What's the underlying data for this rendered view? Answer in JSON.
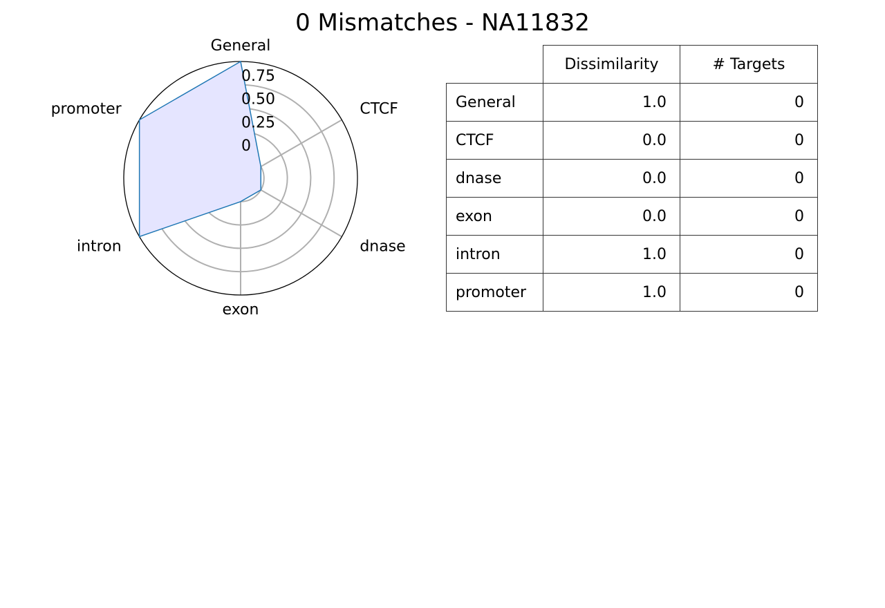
{
  "title": "0 Mismatches - NA11832",
  "chart_data": {
    "type": "radar",
    "title": "0 Mismatches - NA11832",
    "categories": [
      "General",
      "CTCF",
      "dnase",
      "exon",
      "intron",
      "promoter"
    ],
    "values": [
      1.0,
      0.0,
      0.0,
      0.0,
      1.0,
      1.0
    ],
    "rlim": [
      -0.25,
      1.0
    ],
    "radial_ticks": [
      0,
      0.25,
      0.5,
      0.75
    ],
    "radial_tick_labels": [
      "0",
      "0.25",
      "0.50",
      "0.75"
    ],
    "grid": true,
    "colors": {
      "line": "#1f77b4",
      "fill": "#e5e5ff",
      "grid": "#b0b0b0",
      "frame": "#000000"
    }
  },
  "table": {
    "headers": [
      "",
      "Dissimilarity",
      "# Targets"
    ],
    "rows": [
      {
        "label": "General",
        "dissimilarity": "1.0",
        "targets": "0"
      },
      {
        "label": "CTCF",
        "dissimilarity": "0.0",
        "targets": "0"
      },
      {
        "label": "dnase",
        "dissimilarity": "0.0",
        "targets": "0"
      },
      {
        "label": "exon",
        "dissimilarity": "0.0",
        "targets": "0"
      },
      {
        "label": "intron",
        "dissimilarity": "1.0",
        "targets": "0"
      },
      {
        "label": "promoter",
        "dissimilarity": "1.0",
        "targets": "0"
      }
    ]
  }
}
